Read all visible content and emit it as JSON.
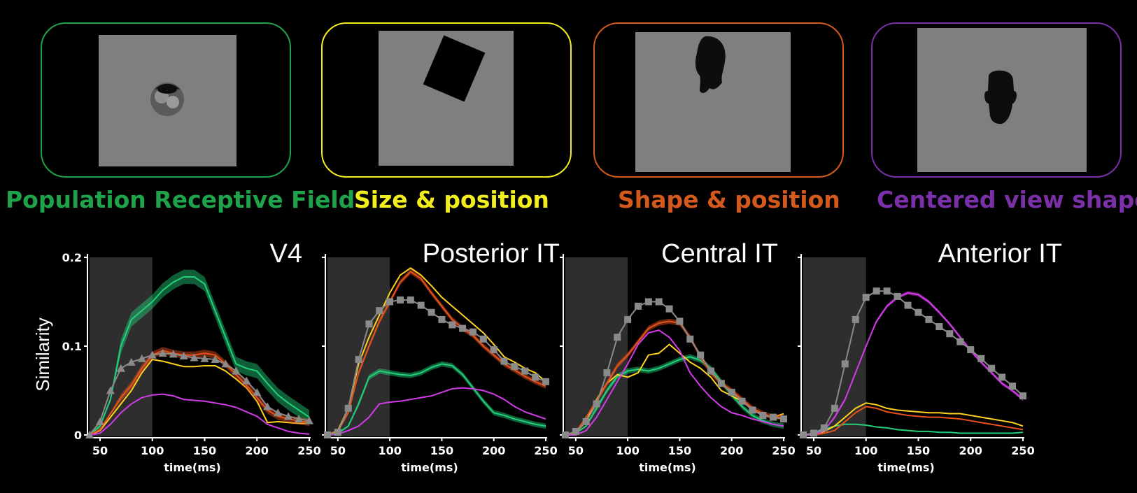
{
  "models": [
    {
      "label": "Population Receptive Field",
      "color": "#1fa34a"
    },
    {
      "label": "Size & position",
      "color": "#f2ee1e"
    },
    {
      "label": "Shape & position",
      "color": "#d4591c"
    },
    {
      "label": "Centered view shape",
      "color": "#7b2fa8"
    }
  ],
  "chart_data": [
    {
      "type": "line",
      "title": "V4",
      "xlabel": "time(ms)",
      "ylabel": "Similarity",
      "xlim": [
        40,
        250
      ],
      "ylim": [
        0,
        0.2
      ],
      "yticks": [
        "0",
        "0.1",
        "0.2"
      ],
      "xticks": [
        "50",
        "100",
        "150",
        "200",
        "250"
      ],
      "shaded_interval": [
        40,
        100
      ],
      "x": [
        40,
        50,
        60,
        70,
        80,
        90,
        100,
        110,
        120,
        130,
        140,
        150,
        160,
        170,
        180,
        190,
        200,
        210,
        220,
        230,
        240,
        250
      ],
      "series": [
        {
          "color": "#21d17a",
          "band": 0.008,
          "values": [
            0.0,
            0.01,
            0.04,
            0.1,
            0.13,
            0.14,
            0.15,
            0.163,
            0.172,
            0.178,
            0.178,
            0.17,
            0.14,
            0.11,
            0.08,
            0.075,
            0.072,
            0.058,
            0.045,
            0.036,
            0.028,
            0.02
          ]
        },
        {
          "color": "#ffd21f",
          "values": [
            0.0,
            0.005,
            0.02,
            0.035,
            0.05,
            0.07,
            0.085,
            0.083,
            0.08,
            0.077,
            0.077,
            0.078,
            0.078,
            0.072,
            0.063,
            0.053,
            0.038,
            0.014,
            0.015,
            0.014,
            0.013,
            0.013
          ]
        },
        {
          "color": "#e8531c",
          "band": 0.004,
          "values": [
            0.0,
            0.006,
            0.024,
            0.042,
            0.056,
            0.075,
            0.09,
            0.095,
            0.092,
            0.09,
            0.09,
            0.092,
            0.09,
            0.08,
            0.068,
            0.056,
            0.042,
            0.028,
            0.021,
            0.018,
            0.016,
            0.014
          ]
        },
        {
          "color": "#d23be8",
          "values": [
            0.0,
            0.002,
            0.012,
            0.025,
            0.035,
            0.042,
            0.045,
            0.046,
            0.044,
            0.04,
            0.039,
            0.038,
            0.036,
            0.034,
            0.031,
            0.026,
            0.021,
            0.012,
            0.008,
            0.004,
            0.002,
            0.001
          ]
        },
        {
          "color": "#8a8a8a",
          "marker": "triangle",
          "values": [
            0.0,
            0.015,
            0.05,
            0.075,
            0.082,
            0.086,
            0.09,
            0.092,
            0.091,
            0.089,
            0.087,
            0.086,
            0.085,
            0.08,
            0.072,
            0.061,
            0.048,
            0.032,
            0.025,
            0.021,
            0.018,
            0.016
          ]
        }
      ]
    },
    {
      "type": "line",
      "title": "Posterior IT",
      "xlabel": "time(ms)",
      "xlim": [
        40,
        250
      ],
      "ylim": [
        0,
        0.2
      ],
      "xticks": [
        "50",
        "100",
        "150",
        "200",
        "250"
      ],
      "shaded_interval": [
        40,
        100
      ],
      "x": [
        40,
        50,
        60,
        70,
        80,
        90,
        100,
        110,
        120,
        130,
        140,
        150,
        160,
        170,
        180,
        190,
        200,
        210,
        220,
        230,
        240,
        250
      ],
      "series": [
        {
          "color": "#21d17a",
          "band": 0.003,
          "values": [
            0.0,
            0.002,
            0.01,
            0.035,
            0.065,
            0.072,
            0.07,
            0.068,
            0.067,
            0.07,
            0.076,
            0.08,
            0.078,
            0.068,
            0.053,
            0.038,
            0.025,
            0.022,
            0.018,
            0.015,
            0.012,
            0.01
          ]
        },
        {
          "color": "#ffd21f",
          "values": [
            0.0,
            0.005,
            0.03,
            0.08,
            0.11,
            0.135,
            0.16,
            0.18,
            0.188,
            0.18,
            0.168,
            0.155,
            0.145,
            0.135,
            0.125,
            0.115,
            0.102,
            0.088,
            0.082,
            0.075,
            0.07,
            0.06
          ]
        },
        {
          "color": "#e8531c",
          "band": 0.003,
          "values": [
            0.0,
            0.004,
            0.025,
            0.07,
            0.1,
            0.128,
            0.15,
            0.172,
            0.184,
            0.176,
            0.16,
            0.145,
            0.13,
            0.12,
            0.112,
            0.1,
            0.09,
            0.08,
            0.073,
            0.066,
            0.06,
            0.055
          ]
        },
        {
          "color": "#d23be8",
          "values": [
            0.0,
            0.001,
            0.005,
            0.01,
            0.02,
            0.035,
            0.037,
            0.038,
            0.04,
            0.042,
            0.044,
            0.048,
            0.052,
            0.053,
            0.052,
            0.05,
            0.046,
            0.04,
            0.032,
            0.026,
            0.022,
            0.018
          ]
        },
        {
          "color": "#8a8a8a",
          "marker": "square",
          "values": [
            0.0,
            0.003,
            0.03,
            0.085,
            0.125,
            0.14,
            0.15,
            0.152,
            0.152,
            0.146,
            0.138,
            0.13,
            0.124,
            0.12,
            0.116,
            0.108,
            0.096,
            0.083,
            0.077,
            0.072,
            0.065,
            0.06
          ]
        }
      ]
    },
    {
      "type": "line",
      "title": "Central IT",
      "xlabel": "time(ms)",
      "xlim": [
        40,
        250
      ],
      "ylim": [
        0,
        0.2
      ],
      "xticks": [
        "50",
        "100",
        "150",
        "200",
        "250"
      ],
      "shaded_interval": [
        40,
        100
      ],
      "x": [
        40,
        50,
        60,
        70,
        80,
        90,
        100,
        110,
        120,
        130,
        140,
        150,
        160,
        170,
        180,
        190,
        200,
        210,
        220,
        230,
        240,
        250
      ],
      "series": [
        {
          "color": "#21d17a",
          "band": 0.003,
          "values": [
            0.0,
            0.002,
            0.01,
            0.03,
            0.05,
            0.066,
            0.072,
            0.074,
            0.072,
            0.075,
            0.08,
            0.085,
            0.088,
            0.084,
            0.075,
            0.06,
            0.045,
            0.032,
            0.022,
            0.016,
            0.012,
            0.01
          ]
        },
        {
          "color": "#ffd21f",
          "values": [
            0.0,
            0.003,
            0.015,
            0.04,
            0.058,
            0.068,
            0.065,
            0.07,
            0.09,
            0.092,
            0.102,
            0.092,
            0.082,
            0.075,
            0.065,
            0.05,
            0.044,
            0.038,
            0.03,
            0.022,
            0.02,
            0.024
          ]
        },
        {
          "color": "#e8531c",
          "band": 0.003,
          "values": [
            0.0,
            0.003,
            0.02,
            0.038,
            0.058,
            0.078,
            0.09,
            0.105,
            0.12,
            0.126,
            0.128,
            0.126,
            0.11,
            0.088,
            0.07,
            0.058,
            0.05,
            0.04,
            0.03,
            0.024,
            0.02,
            0.02
          ]
        },
        {
          "color": "#d23be8",
          "values": [
            0.0,
            0.0,
            0.005,
            0.02,
            0.04,
            0.06,
            0.08,
            0.102,
            0.115,
            0.118,
            0.11,
            0.095,
            0.07,
            0.055,
            0.042,
            0.032,
            0.025,
            0.022,
            0.018,
            0.015,
            0.012,
            0.01
          ]
        },
        {
          "color": "#8a8a8a",
          "marker": "square",
          "values": [
            0.0,
            0.004,
            0.015,
            0.035,
            0.07,
            0.11,
            0.13,
            0.145,
            0.15,
            0.15,
            0.142,
            0.128,
            0.108,
            0.09,
            0.072,
            0.058,
            0.048,
            0.038,
            0.028,
            0.022,
            0.02,
            0.018
          ]
        }
      ]
    },
    {
      "type": "line",
      "title": "Anterior IT",
      "xlabel": "time(ms)",
      "xlim": [
        40,
        250
      ],
      "ylim": [
        0,
        0.2
      ],
      "xticks": [
        "50",
        "100",
        "150",
        "200",
        "250"
      ],
      "shaded_interval": [
        40,
        100
      ],
      "x": [
        40,
        50,
        60,
        70,
        80,
        90,
        100,
        110,
        120,
        130,
        140,
        150,
        160,
        170,
        180,
        190,
        200,
        210,
        220,
        230,
        240,
        250
      ],
      "series": [
        {
          "color": "#21d17a",
          "values": [
            0.0,
            0.002,
            0.006,
            0.01,
            0.012,
            0.012,
            0.011,
            0.009,
            0.008,
            0.006,
            0.005,
            0.004,
            0.004,
            0.003,
            0.003,
            0.002,
            0.002,
            0.002,
            0.002,
            0.002,
            0.002,
            0.003
          ]
        },
        {
          "color": "#ffd21f",
          "values": [
            0.0,
            0.0,
            0.004,
            0.01,
            0.02,
            0.03,
            0.036,
            0.034,
            0.03,
            0.028,
            0.027,
            0.026,
            0.025,
            0.025,
            0.024,
            0.024,
            0.022,
            0.02,
            0.018,
            0.016,
            0.014,
            0.01
          ]
        },
        {
          "color": "#e8531c",
          "values": [
            0.0,
            0.0,
            0.002,
            0.005,
            0.015,
            0.025,
            0.032,
            0.03,
            0.026,
            0.024,
            0.022,
            0.021,
            0.02,
            0.02,
            0.019,
            0.018,
            0.016,
            0.014,
            0.012,
            0.01,
            0.008,
            0.006
          ]
        },
        {
          "color": "#d23be8",
          "band": 0.002,
          "values": [
            0.0,
            0.0,
            0.005,
            0.02,
            0.04,
            0.07,
            0.1,
            0.128,
            0.145,
            0.155,
            0.16,
            0.158,
            0.15,
            0.138,
            0.125,
            0.11,
            0.095,
            0.082,
            0.07,
            0.058,
            0.05,
            0.04
          ]
        },
        {
          "color": "#8a8a8a",
          "marker": "square",
          "values": [
            0.0,
            0.002,
            0.008,
            0.03,
            0.08,
            0.13,
            0.155,
            0.162,
            0.162,
            0.156,
            0.146,
            0.138,
            0.13,
            0.122,
            0.114,
            0.105,
            0.096,
            0.086,
            0.075,
            0.065,
            0.055,
            0.044
          ]
        }
      ]
    }
  ]
}
